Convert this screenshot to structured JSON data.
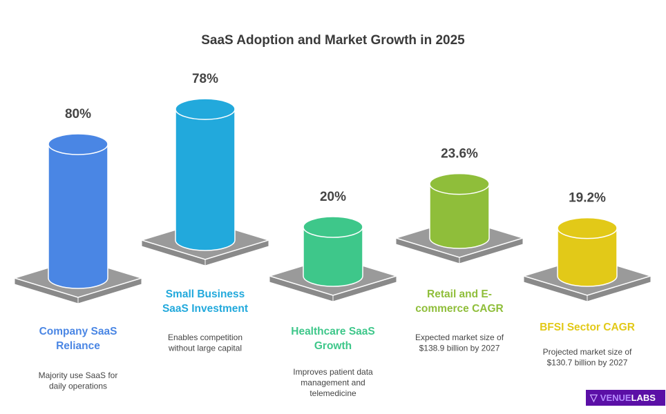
{
  "chart_data": {
    "type": "bar",
    "title": "SaaS Adoption and Market Growth in 2025",
    "categories": [
      "Company SaaS Reliance",
      "Small Business SaaS Investment",
      "Healthcare SaaS Growth",
      "Retail and E-commerce CAGR",
      "BFSI Sector CAGR"
    ],
    "values": [
      80,
      78,
      20,
      23.6,
      19.2
    ],
    "value_labels": [
      "80%",
      "78%",
      "20%",
      "23.6%",
      "19.2%"
    ],
    "unit": "%",
    "colors": [
      "#4a86e4",
      "#22a9dc",
      "#3ec78a",
      "#8fbe3a",
      "#e2c918"
    ],
    "items": [
      {
        "label_lines": [
          "Company SaaS",
          "Reliance"
        ],
        "description_lines": [
          "Majority use SaaS for",
          "daily operations"
        ]
      },
      {
        "label_lines": [
          "Small Business",
          "SaaS Investment"
        ],
        "description_lines": [
          "Enables competition",
          "without large capital"
        ]
      },
      {
        "label_lines": [
          "Healthcare SaaS",
          "Growth"
        ],
        "description_lines": [
          "Improves patient data",
          "management and",
          "telemedicine"
        ]
      },
      {
        "label_lines": [
          "Retail and E-",
          "commerce CAGR"
        ],
        "description_lines": [
          "Expected market size of",
          "$138.9 billion by 2027"
        ]
      },
      {
        "label_lines": [
          "BFSI Sector CAGR"
        ],
        "description_lines": [
          "Projected market size of",
          "$130.7 billion by 2027"
        ]
      }
    ],
    "platform_color": "#9a9a9a",
    "grid": false,
    "legend": "none"
  },
  "logo": {
    "text_a": "VENUE",
    "text_b": "LABS"
  }
}
